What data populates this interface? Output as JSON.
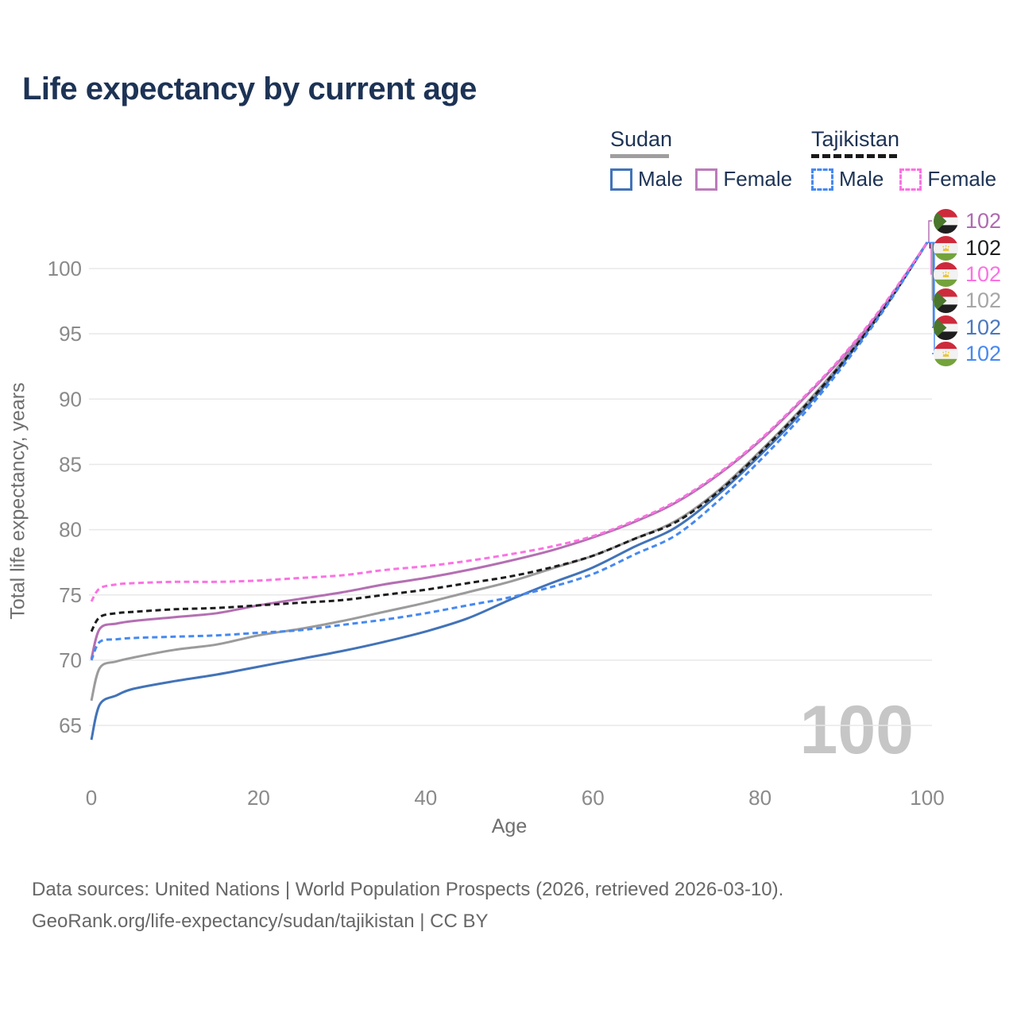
{
  "title": "Life expectancy by current age",
  "legend": {
    "groups": [
      {
        "country": "Sudan",
        "line_style": "solid",
        "underline_color": "#9e9e9e",
        "items": [
          {
            "label": "Male",
            "color": "#4273b8"
          },
          {
            "label": "Female",
            "color": "#bb7cba"
          }
        ]
      },
      {
        "country": "Tajikistan",
        "line_style": "dashed",
        "underline_color": "#1a1a1a",
        "items": [
          {
            "label": "Male",
            "color": "#4689f2"
          },
          {
            "label": "Female",
            "color": "#fb72e2"
          }
        ]
      }
    ]
  },
  "watermark_age": "100",
  "end_labels": [
    {
      "series": "Sudan Female",
      "flag": "sudan",
      "value": "102",
      "color": "#b06ab0"
    },
    {
      "series": "Tajikistan Total",
      "flag": "tajikistan",
      "value": "102",
      "color": "#1f1f1f"
    },
    {
      "series": "Tajikistan Female",
      "flag": "tajikistan",
      "value": "102",
      "color": "#fb72e2"
    },
    {
      "series": "Sudan Total",
      "flag": "sudan",
      "value": "102",
      "color": "#a6a6a6"
    },
    {
      "series": "Sudan Male",
      "flag": "sudan",
      "value": "102",
      "color": "#4a78bf"
    },
    {
      "series": "Tajikistan Male",
      "flag": "tajikistan",
      "value": "102",
      "color": "#4689f2"
    }
  ],
  "footer": {
    "line1": "Data sources: United Nations | World Population Prospects (2026, retrieved 2026-03-10).",
    "line2": "GeoRank.org/life-expectancy/sudan/tajikistan | CC BY"
  },
  "chart_data": {
    "type": "line",
    "title": "Life expectancy by current age",
    "xlabel": "Age",
    "ylabel": "Total life expectancy, years",
    "xlim": [
      0,
      100
    ],
    "ylim": [
      63,
      103
    ],
    "x_ticks": [
      0,
      20,
      40,
      60,
      80,
      100
    ],
    "y_ticks": [
      65,
      70,
      75,
      80,
      85,
      90,
      95,
      100
    ],
    "grid": "horizontal",
    "legend_position": "top-right",
    "x": [
      0,
      1,
      3,
      5,
      10,
      15,
      20,
      25,
      30,
      35,
      40,
      45,
      50,
      55,
      60,
      65,
      70,
      75,
      80,
      85,
      90,
      95,
      100
    ],
    "series": [
      {
        "name": "Sudan Total",
        "country": "Sudan",
        "sex": "Total",
        "color": "#9b9b9b",
        "dashed": false,
        "values": [
          66.9,
          69.4,
          69.9,
          70.2,
          70.8,
          71.2,
          71.9,
          72.4,
          73.0,
          73.7,
          74.4,
          75.2,
          76.0,
          77.0,
          78.0,
          79.3,
          80.7,
          83.0,
          86.0,
          89.3,
          93.0,
          97.2,
          102
        ]
      },
      {
        "name": "Sudan Female",
        "country": "Sudan",
        "sex": "Female",
        "color": "#b46fb2",
        "dashed": false,
        "values": [
          70.1,
          72.4,
          72.8,
          73.0,
          73.3,
          73.6,
          74.2,
          74.7,
          75.2,
          75.8,
          76.3,
          76.9,
          77.6,
          78.4,
          79.4,
          80.6,
          82.1,
          84.2,
          86.8,
          89.9,
          93.3,
          97.3,
          102
        ]
      },
      {
        "name": "Sudan Male",
        "country": "Sudan",
        "sex": "Male",
        "color": "#4273b8",
        "dashed": false,
        "values": [
          63.9,
          66.6,
          67.3,
          67.8,
          68.4,
          68.9,
          69.5,
          70.1,
          70.7,
          71.4,
          72.2,
          73.2,
          74.6,
          75.9,
          77.1,
          78.7,
          80.2,
          82.7,
          85.7,
          89.0,
          92.8,
          97.1,
          102
        ]
      },
      {
        "name": "Tajikistan Total",
        "country": "Tajikistan",
        "sex": "Total",
        "color": "#1c1c1c",
        "dashed": true,
        "values": [
          72.2,
          73.3,
          73.6,
          73.7,
          73.9,
          74.0,
          74.2,
          74.4,
          74.6,
          75.0,
          75.4,
          75.9,
          76.4,
          77.1,
          78.0,
          79.3,
          80.6,
          82.9,
          85.9,
          89.2,
          92.9,
          97.1,
          102
        ]
      },
      {
        "name": "Tajikistan Male",
        "country": "Tajikistan",
        "sex": "Male",
        "color": "#4689f2",
        "dashed": true,
        "values": [
          70.0,
          71.4,
          71.6,
          71.7,
          71.8,
          71.9,
          72.1,
          72.3,
          72.7,
          73.1,
          73.6,
          74.2,
          74.8,
          75.6,
          76.6,
          78.1,
          79.6,
          82.2,
          85.3,
          88.7,
          92.6,
          97.0,
          102
        ]
      },
      {
        "name": "Tajikistan Female",
        "country": "Tajikistan",
        "sex": "Female",
        "color": "#fb72e2",
        "dashed": true,
        "values": [
          74.5,
          75.5,
          75.8,
          75.9,
          76.0,
          76.0,
          76.1,
          76.3,
          76.5,
          76.9,
          77.2,
          77.6,
          78.1,
          78.7,
          79.5,
          80.7,
          82.2,
          84.3,
          86.9,
          90.0,
          93.4,
          97.4,
          102
        ]
      }
    ],
    "end_value_labels": [
      102,
      102,
      102,
      102,
      102,
      102
    ]
  },
  "colors": {
    "title": "#1d3355",
    "grid": "#e8e8e8",
    "tick_text": "#8a8a8a",
    "axis_title": "#6f6f6f",
    "watermark": "#c6c6c6",
    "footer": "#676767"
  }
}
